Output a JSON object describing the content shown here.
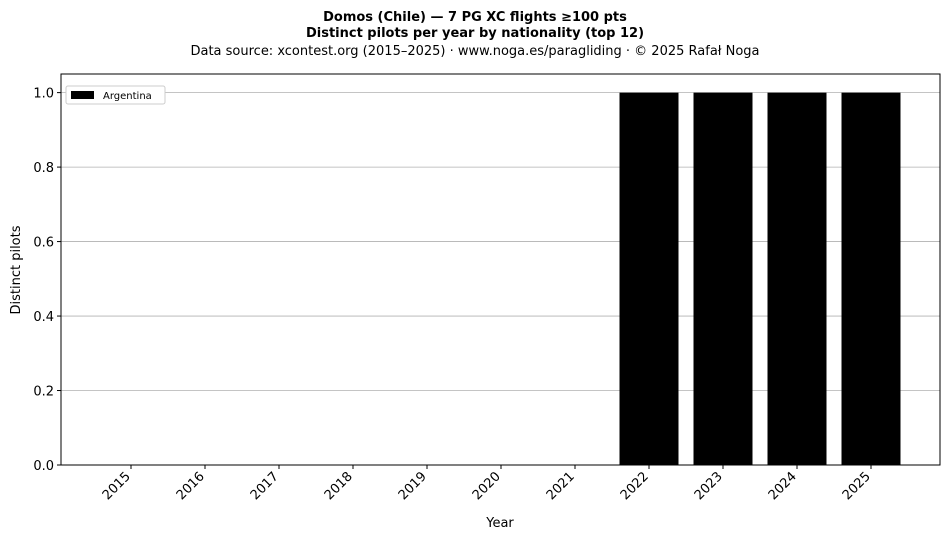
{
  "chart_data": {
    "type": "bar",
    "title": "Domos (Chile)  —  7 PG XC flights ≥100 pts",
    "subtitle": "Distinct pilots per year by nationality (top 12)",
    "source": "Data source: xcontest.org (2015–2025)  ·  www.noga.es/paragliding  ·  © 2025 Rafał Noga",
    "xlabel": "Year",
    "ylabel": "Distinct pilots",
    "categories": [
      "2015",
      "2016",
      "2017",
      "2018",
      "2019",
      "2020",
      "2021",
      "2022",
      "2023",
      "2024",
      "2025"
    ],
    "series": [
      {
        "name": "Argentina",
        "values": [
          0,
          0,
          0,
          0,
          0,
          0,
          0,
          1,
          1,
          1,
          1
        ],
        "color": "#000000"
      }
    ],
    "ylim": [
      0,
      1.05
    ],
    "yticks": [
      "0.0",
      "0.2",
      "0.4",
      "0.6",
      "0.8",
      "1.0"
    ],
    "grid": "y",
    "legend_position": "top-left"
  }
}
